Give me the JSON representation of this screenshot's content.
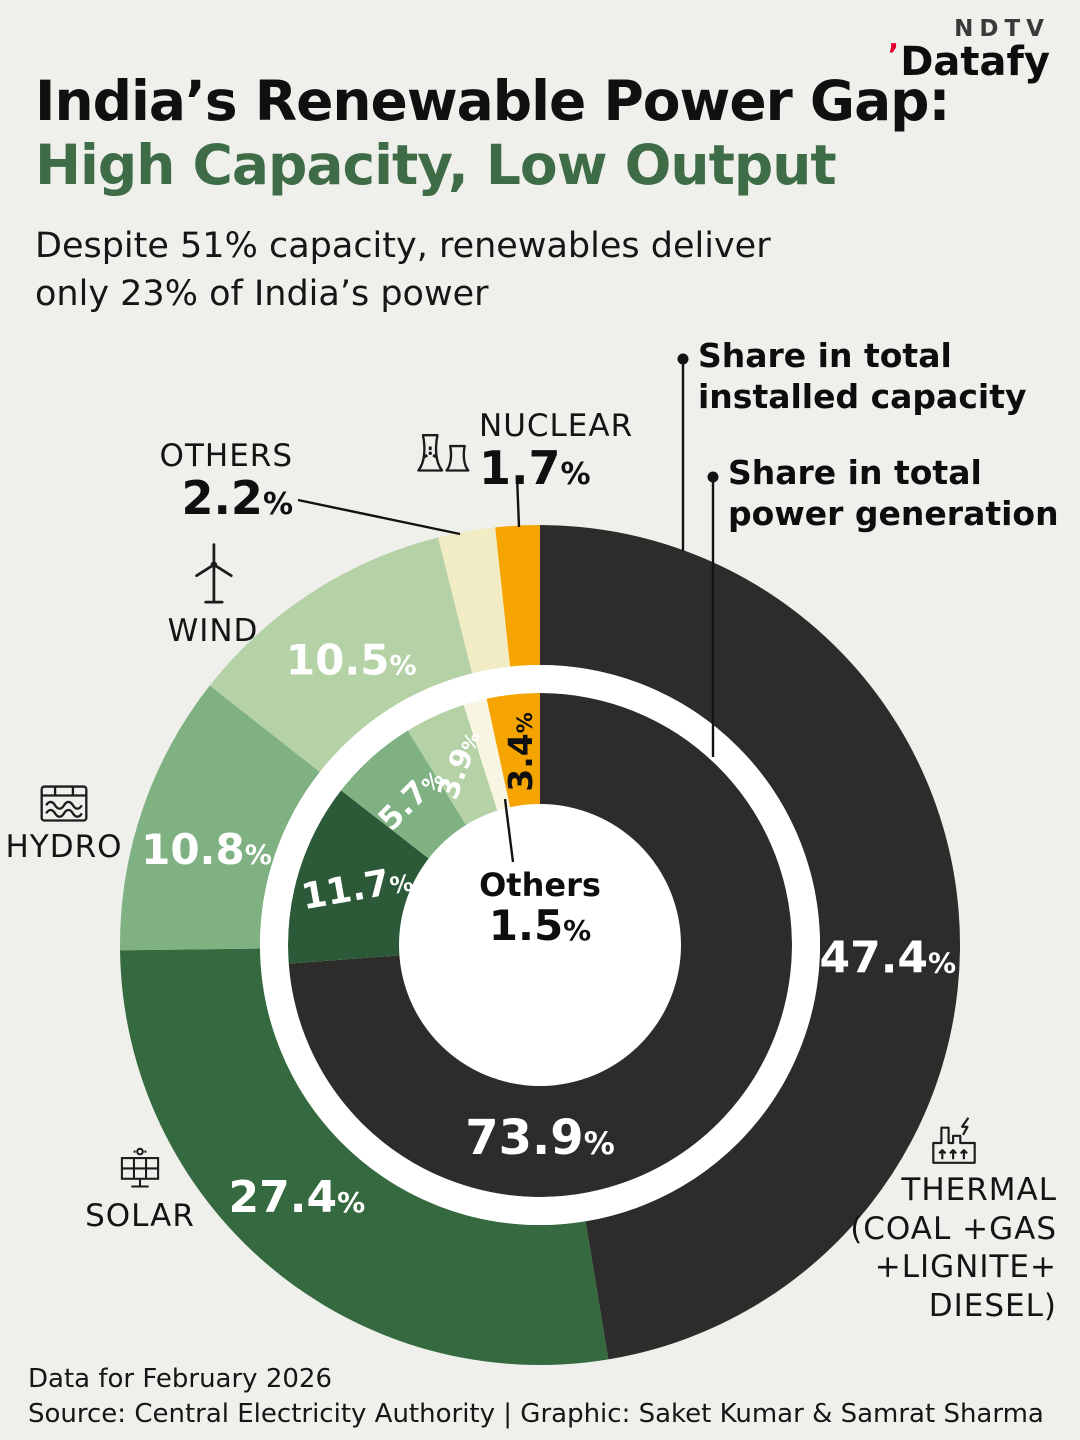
{
  "logo": {
    "brand": "NDTV",
    "product": "Datafy"
  },
  "header": {
    "title_line1": "India’s Renewable Power Gap:",
    "title_line2": "High Capacity, Low Output",
    "subtitle_line1": "Despite 51% capacity, renewables deliver",
    "subtitle_line2": "only 23% of India’s power"
  },
  "legend": [
    {
      "line1": "Share in total",
      "line2": "installed capacity"
    },
    {
      "line1": "Share in total",
      "line2": "power generation"
    }
  ],
  "labels": {
    "others": {
      "name": "OTHERS"
    },
    "nuclear": {
      "name": "NUCLEAR"
    },
    "wind": {
      "name": "WIND"
    },
    "hydro": {
      "name": "HYDRO"
    },
    "solar": {
      "name": "SOLAR"
    },
    "thermal": {
      "name": "THERMAL",
      "detail1": "(COAL +GAS",
      "detail2": "+LIGNITE+",
      "detail3": "DIESEL)"
    },
    "center": {
      "name": "Others"
    }
  },
  "chart_data": {
    "type": "pie",
    "variant": "nested_donut",
    "unit": "%",
    "direction": "clockwise",
    "start_angle_deg": 0,
    "order": [
      "Thermal",
      "Solar",
      "Hydro",
      "Wind",
      "Others",
      "Nuclear"
    ],
    "colors": {
      "Thermal": "#2d2c2a",
      "Solar": "#35693f",
      "Hydro": "#7fb183",
      "Wind": "#b5d2a6",
      "Others": "#f1ecc4",
      "Nuclear": "#f6a500"
    },
    "rings": [
      {
        "id": "outer",
        "name": "Share in total installed capacity",
        "values": {
          "Thermal": 47.4,
          "Solar": 27.4,
          "Hydro": 10.8,
          "Wind": 10.5,
          "Others": 2.2,
          "Nuclear": 1.7
        }
      },
      {
        "id": "inner",
        "name": "Share in total power generation",
        "values": {
          "Thermal": 73.9,
          "Solar": 11.7,
          "Hydro": 5.7,
          "Wind": 3.9,
          "Others": 1.5,
          "Nuclear": 3.4
        },
        "color_overrides": {
          "Solar": "#2c5a39",
          "Others": "#f8f5e2"
        }
      }
    ]
  },
  "theme": {
    "background": "#efefec",
    "title_green": "#3e6c47",
    "text_dark": "#121212",
    "logo_red": "#e4002b"
  },
  "footer": {
    "line1": "Data for February 2026",
    "line2": "Source: Central Electricity Authority | Graphic: Saket Kumar & Samrat Sharma"
  }
}
